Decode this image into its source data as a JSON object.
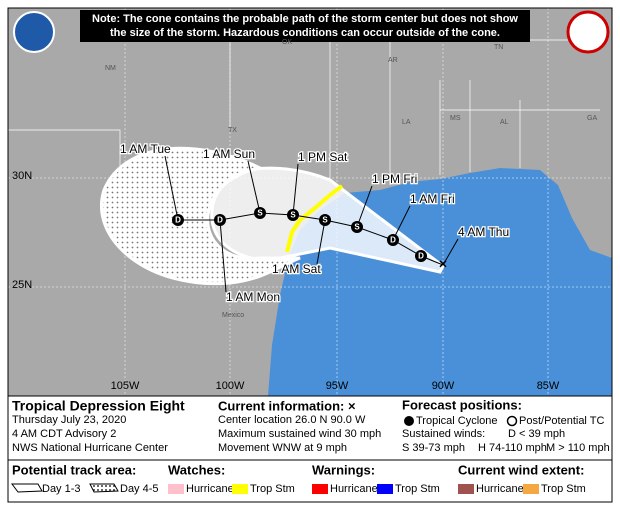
{
  "note": [
    "Note: The cone contains the probable path of the storm center but does not show",
    "the size of the storm. Hazardous conditions can occur outside of the cone."
  ],
  "map_labels": [
    "NM",
    "OK",
    "AR",
    "TN",
    "TX",
    "LA",
    "MS",
    "AL",
    "GA",
    "Mexico"
  ],
  "latitudes": [
    "30N",
    "25N"
  ],
  "longitudes": [
    "105W",
    "100W",
    "95W",
    "90W",
    "85W"
  ],
  "track": [
    {
      "label": "1 AM Tue",
      "symbol": "D"
    },
    {
      "label": "1 AM Mon",
      "symbol": "D"
    },
    {
      "label": "1 AM Sun",
      "symbol": "S"
    },
    {
      "label": "1 PM Sat",
      "symbol": "S"
    },
    {
      "label": "1 AM Sat",
      "symbol": "S"
    },
    {
      "label": "1 PM Fri",
      "symbol": "S"
    },
    {
      "label": "1 AM Fri",
      "symbol": "D"
    },
    {
      "label": null,
      "symbol": "D"
    },
    {
      "label": "4 AM Thu",
      "symbol": "×"
    }
  ],
  "storm": {
    "name": "Tropical Depression Eight",
    "date": "Thursday July 23, 2020",
    "advisory": "4 AM CDT Advisory 2",
    "center": "NWS National Hurricane Center"
  },
  "current": {
    "title": "Current information: ×",
    "location": "Center location 26.0 N 90.0 W",
    "wind": "Maximum sustained wind 30 mph",
    "movement": "Movement WNW at 9 mph"
  },
  "forecast": {
    "title": "Forecast positions:",
    "tc": "Tropical Cyclone",
    "post": "Post/Potential TC",
    "winds": "Sustained winds:",
    "d": "D < 39 mph",
    "s": "S 39-73 mph",
    "h": "H 74-110 mph",
    "m": "M > 110 mph"
  },
  "legend": {
    "track_area": "Potential track area:",
    "day13": "Day 1-3",
    "day45": "Day 4-5",
    "watches": "Watches:",
    "watch_hurricane": "Hurricane",
    "watch_trop": "Trop Stm",
    "warnings": "Warnings:",
    "warn_hurricane": "Hurricane",
    "warn_trop": "Trop Stm",
    "wind_extent": "Current wind extent:",
    "wind_hurricane": "Hurricane",
    "wind_trop": "Trop Stm"
  }
}
